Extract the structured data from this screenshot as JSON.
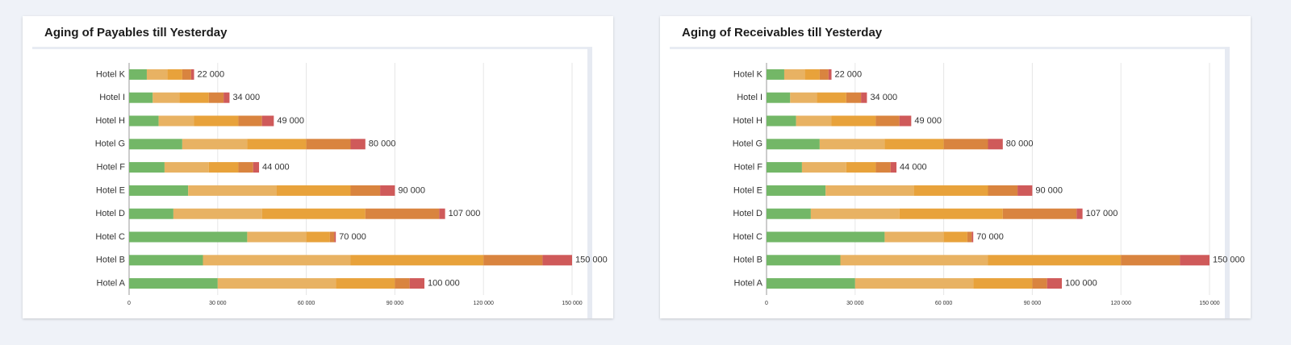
{
  "chart_data": [
    {
      "type": "stacked-bar",
      "orientation": "horizontal",
      "title": "Aging of Payables till Yesterday",
      "categories": [
        "Hotel A",
        "Hotel B",
        "Hotel C",
        "Hotel D",
        "Hotel E",
        "Hotel F",
        "Hotel G",
        "Hotel H",
        "Hotel I",
        "Hotel K"
      ],
      "series": [
        {
          "color": "#73b767",
          "values": [
            30000,
            25000,
            40000,
            15000,
            20000,
            12000,
            18000,
            10000,
            8000,
            6000
          ]
        },
        {
          "color": "#e8b263",
          "values": [
            40000,
            50000,
            20000,
            30000,
            30000,
            15000,
            22000,
            12000,
            9000,
            7000
          ]
        },
        {
          "color": "#e8a23b",
          "values": [
            20000,
            45000,
            8000,
            35000,
            25000,
            10000,
            20000,
            15000,
            10000,
            5000
          ]
        },
        {
          "color": "#d9843f",
          "values": [
            5000,
            20000,
            1500,
            25000,
            10000,
            5000,
            15000,
            8000,
            5000,
            3000
          ]
        },
        {
          "color": "#cf5a5a",
          "values": [
            5000,
            10000,
            500,
            2000,
            5000,
            2000,
            5000,
            4000,
            2000,
            1000
          ]
        }
      ],
      "totals": [
        100000,
        150000,
        70000,
        107000,
        90000,
        44000,
        80000,
        49000,
        34000,
        22000
      ],
      "total_labels": [
        "100 000",
        "150 000",
        "70 000",
        "107 000",
        "90 000",
        "44 000",
        "80 000",
        "49 000",
        "34 000",
        "22 000"
      ],
      "xlim": [
        0,
        150000
      ],
      "xticks": [
        0,
        {
          "value": 30000,
          "label": "30 000"
        },
        {
          "value": 60000,
          "label": "60 000"
        },
        {
          "value": 90000,
          "label": "90 000"
        },
        {
          "value": 120000,
          "label": "120 000"
        },
        {
          "value": 150000,
          "label": "150 000"
        }
      ],
      "grid": true
    },
    {
      "type": "stacked-bar",
      "orientation": "horizontal",
      "title": "Aging of Receivables till Yesterday",
      "categories": [
        "Hotel A",
        "Hotel B",
        "Hotel C",
        "Hotel D",
        "Hotel E",
        "Hotel F",
        "Hotel G",
        "Hotel H",
        "Hotel I",
        "Hotel K"
      ],
      "series": [
        {
          "color": "#73b767",
          "values": [
            30000,
            25000,
            40000,
            15000,
            20000,
            12000,
            18000,
            10000,
            8000,
            6000
          ]
        },
        {
          "color": "#e8b263",
          "values": [
            40000,
            50000,
            20000,
            30000,
            30000,
            15000,
            22000,
            12000,
            9000,
            7000
          ]
        },
        {
          "color": "#e8a23b",
          "values": [
            20000,
            45000,
            8000,
            35000,
            25000,
            10000,
            20000,
            15000,
            10000,
            5000
          ]
        },
        {
          "color": "#d9843f",
          "values": [
            5000,
            20000,
            1500,
            25000,
            10000,
            5000,
            15000,
            8000,
            5000,
            3000
          ]
        },
        {
          "color": "#cf5a5a",
          "values": [
            5000,
            10000,
            500,
            2000,
            5000,
            2000,
            5000,
            4000,
            2000,
            1000
          ]
        }
      ],
      "totals": [
        100000,
        150000,
        70000,
        107000,
        90000,
        44000,
        80000,
        49000,
        34000,
        22000
      ],
      "total_labels": [
        "100 000",
        "150 000",
        "70 000",
        "107 000",
        "90 000",
        "44 000",
        "80 000",
        "49 000",
        "34 000",
        "22 000"
      ],
      "xlim": [
        0,
        150000
      ],
      "xticks": [
        0,
        {
          "value": 30000,
          "label": "30 000"
        },
        {
          "value": 60000,
          "label": "60 000"
        },
        {
          "value": 90000,
          "label": "90 000"
        },
        {
          "value": 120000,
          "label": "120 000"
        },
        {
          "value": 150000,
          "label": "150 000"
        }
      ],
      "grid": true
    }
  ]
}
